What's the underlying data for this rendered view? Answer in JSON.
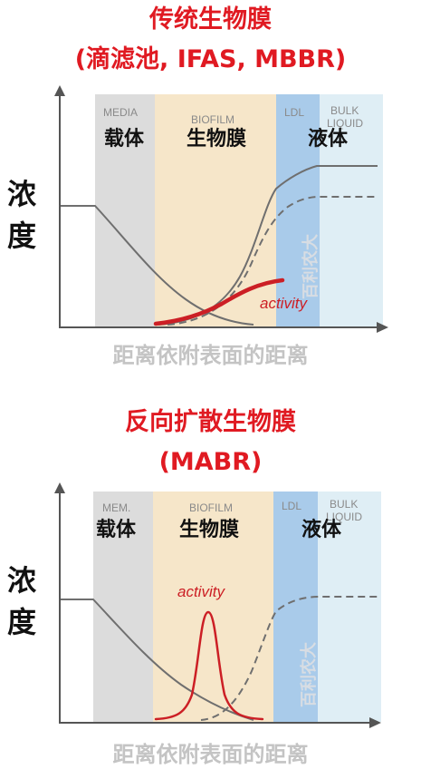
{
  "panel1": {
    "title_line1": "传统生物膜",
    "title_line2": "(滴滤池, IFAS, MBBR)",
    "y_label": [
      "浓",
      "度"
    ],
    "x_label": "距离依附表面的距离",
    "zones": {
      "media_en": "MEDIA",
      "media_cn": "载体",
      "biofilm_en": "BIOFILM",
      "biofilm_cn": "生物膜",
      "ldl_en": "LDL",
      "bulk_en_1": "BULK",
      "bulk_en_2": "LIQUID",
      "bulk_cn": "液体"
    },
    "activity_label": "activity",
    "watermark": "百利农大"
  },
  "panel2": {
    "title_line1": "反向扩散生物膜",
    "title_line2": "(MABR)",
    "y_label": [
      "浓",
      "度"
    ],
    "x_label": "距离依附表面的距离",
    "zones": {
      "media_en_1": "MEM.",
      "media_cn": "载体",
      "biofilm_en": "BIOFILM",
      "biofilm_cn": "生物膜",
      "ldl_en": "LDL",
      "bulk_en_1": "BULK",
      "bulk_en_2": "LIQUID",
      "bulk_cn": "液体"
    },
    "activity_label": "activity",
    "watermark": "百利农大"
  },
  "colors": {
    "title": "#e01a22",
    "media_zone": "#dcdcdc",
    "biofilm_zone": "#f6e6c9",
    "ldl_zone": "#a9cbea",
    "bulk_zone": "#dfeef5",
    "activity_curve": "#cc1f25",
    "profile_line": "#6f6f6f"
  }
}
